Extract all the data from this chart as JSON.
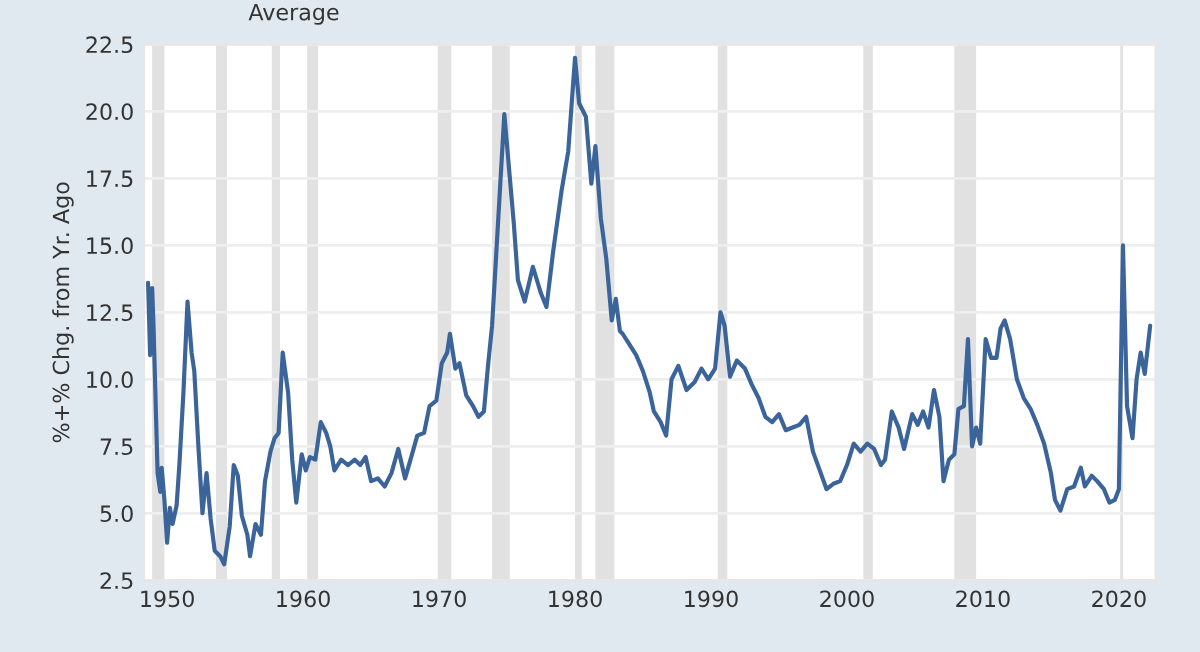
{
  "chart_data": {
    "type": "line",
    "title": "Average",
    "ylabel": "%+% Chg. from Yr. Ago",
    "x": [
      1948.6,
      1948.75,
      1948.9,
      1949.0,
      1949.3,
      1949.5,
      1949.6,
      1949.8,
      1950.0,
      1950.2,
      1950.4,
      1950.7,
      1950.9,
      1951.2,
      1951.5,
      1951.8,
      1952.0,
      1952.3,
      1952.6,
      1952.9,
      1953.2,
      1953.5,
      1953.9,
      1954.2,
      1954.6,
      1954.9,
      1955.2,
      1955.5,
      1955.9,
      1956.1,
      1956.5,
      1956.9,
      1957.2,
      1957.6,
      1957.9,
      1958.2,
      1958.5,
      1958.9,
      1959.2,
      1959.5,
      1959.9,
      1960.2,
      1960.5,
      1960.9,
      1961.3,
      1961.7,
      1962.0,
      1962.3,
      1962.8,
      1963.3,
      1963.8,
      1964.2,
      1964.6,
      1965.0,
      1965.5,
      1966.0,
      1966.5,
      1967.0,
      1967.5,
      1967.9,
      1968.4,
      1968.9,
      1969.3,
      1969.8,
      1970.2,
      1970.6,
      1970.8,
      1971.2,
      1971.5,
      1972.0,
      1972.5,
      1972.9,
      1973.3,
      1973.6,
      1973.9,
      1974.3,
      1974.8,
      1975.5,
      1975.8,
      1976.3,
      1976.9,
      1977.5,
      1977.9,
      1978.4,
      1979.0,
      1979.5,
      1980.0,
      1980.3,
      1980.8,
      1981.2,
      1981.5,
      1981.9,
      1982.3,
      1982.7,
      1983.0,
      1983.3,
      1983.5,
      1984.0,
      1984.5,
      1985.0,
      1985.5,
      1985.8,
      1986.3,
      1986.7,
      1987.1,
      1987.6,
      1988.2,
      1988.8,
      1989.3,
      1989.8,
      1990.3,
      1990.7,
      1991.0,
      1991.4,
      1991.9,
      1992.5,
      1993.0,
      1993.5,
      1994.0,
      1994.5,
      1995.0,
      1995.5,
      1996.0,
      1996.5,
      1997.0,
      1997.5,
      1998.0,
      1998.5,
      1999.0,
      1999.5,
      2000.0,
      2000.5,
      2001.0,
      2001.5,
      2002.0,
      2002.5,
      2002.8,
      2003.3,
      2003.8,
      2004.2,
      2004.8,
      2005.2,
      2005.6,
      2006.0,
      2006.4,
      2006.8,
      2007.1,
      2007.5,
      2007.9,
      2008.2,
      2008.6,
      2008.9,
      2009.2,
      2009.5,
      2009.8,
      2010.2,
      2010.6,
      2011.0,
      2011.3,
      2011.6,
      2012.0,
      2012.5,
      2013.0,
      2013.5,
      2014.0,
      2014.5,
      2015.0,
      2015.3,
      2015.7,
      2016.2,
      2016.7,
      2017.2,
      2017.5,
      2018.0,
      2018.4,
      2018.9,
      2019.3,
      2019.7,
      2020.0,
      2020.3,
      2020.6,
      2021.0,
      2021.3,
      2021.6,
      2021.9,
      2022.3
    ],
    "series": [
      {
        "color": "#3b659a",
        "values": [
          13.6,
          10.9,
          13.4,
          12.0,
          6.5,
          5.8,
          6.7,
          5.5,
          3.9,
          5.2,
          4.6,
          5.3,
          6.8,
          9.5,
          12.9,
          11.0,
          10.3,
          7.5,
          5.0,
          6.5,
          4.8,
          3.6,
          3.4,
          3.1,
          4.5,
          6.8,
          6.4,
          4.9,
          4.2,
          3.4,
          4.6,
          4.2,
          6.2,
          7.3,
          7.8,
          8.0,
          11.0,
          9.5,
          7.0,
          5.4,
          7.2,
          6.6,
          7.1,
          7.0,
          8.4,
          8.0,
          7.5,
          6.6,
          7.0,
          6.8,
          7.0,
          6.8,
          7.1,
          6.2,
          6.3,
          6.0,
          6.5,
          7.4,
          6.3,
          7.0,
          7.9,
          8.0,
          9.0,
          9.2,
          10.6,
          11.0,
          11.7,
          10.4,
          10.6,
          9.4,
          9.0,
          8.6,
          8.8,
          10.5,
          12.0,
          15.5,
          19.9,
          15.8,
          13.7,
          12.9,
          14.2,
          13.2,
          12.7,
          14.8,
          17.0,
          18.5,
          22.0,
          20.3,
          19.8,
          17.3,
          18.7,
          16.0,
          14.5,
          12.2,
          13.0,
          11.8,
          11.7,
          11.3,
          10.9,
          10.3,
          9.5,
          8.8,
          8.4,
          7.9,
          10.0,
          10.5,
          9.6,
          9.9,
          10.4,
          10.0,
          10.4,
          12.5,
          12.0,
          10.1,
          10.7,
          10.4,
          9.8,
          9.3,
          8.6,
          8.4,
          8.7,
          8.1,
          8.2,
          8.3,
          8.6,
          7.3,
          6.6,
          5.9,
          6.1,
          6.2,
          6.8,
          7.6,
          7.3,
          7.6,
          7.4,
          6.8,
          7.0,
          8.8,
          8.2,
          7.4,
          8.7,
          8.3,
          8.8,
          8.2,
          9.6,
          8.6,
          6.2,
          7.0,
          7.2,
          8.9,
          9.0,
          11.5,
          7.5,
          8.2,
          7.6,
          11.5,
          10.8,
          10.8,
          11.9,
          12.2,
          11.5,
          10.0,
          9.3,
          8.9,
          8.3,
          7.6,
          6.5,
          5.5,
          5.1,
          5.9,
          6.0,
          6.7,
          6.0,
          6.4,
          6.2,
          5.9,
          5.4,
          5.5,
          5.9,
          15.0,
          9.0,
          7.8,
          10.0,
          11.0,
          10.2,
          12.0
        ]
      }
    ],
    "xlim": [
      1948.3,
      2022.7
    ],
    "xticks": [
      1950,
      1960,
      1970,
      1980,
      1990,
      2000,
      2010,
      2020
    ],
    "ylim": [
      2.5,
      22.5
    ],
    "yticks": [
      {
        "value": 2.5,
        "label": "2.5"
      },
      {
        "value": 5,
        "label": "5.0"
      },
      {
        "value": 7.5,
        "label": "7.5"
      },
      {
        "value": 10,
        "label": "10.0"
      },
      {
        "value": 12.5,
        "label": "12.5"
      },
      {
        "value": 15,
        "label": "15.0"
      },
      {
        "value": 17.5,
        "label": "17.5"
      },
      {
        "value": 20,
        "label": "20.0"
      },
      {
        "value": 22.5,
        "label": "22.5"
      }
    ],
    "grid": "y",
    "legend": false,
    "line_style": "solid",
    "bands": [
      {
        "axis": "x",
        "from": 1948.9,
        "to": 1949.8,
        "color": "#e1e1e1"
      },
      {
        "axis": "x",
        "from": 1953.6,
        "to": 1954.4,
        "color": "#e1e1e1"
      },
      {
        "axis": "x",
        "from": 1957.7,
        "to": 1958.3,
        "color": "#e1e1e1"
      },
      {
        "axis": "x",
        "from": 1960.3,
        "to": 1961.1,
        "color": "#e1e1e1"
      },
      {
        "axis": "x",
        "from": 1969.9,
        "to": 1970.9,
        "color": "#e1e1e1"
      },
      {
        "axis": "x",
        "from": 1973.9,
        "to": 1975.2,
        "color": "#e1e1e1"
      },
      {
        "axis": "x",
        "from": 1980.0,
        "to": 1980.5,
        "color": "#e1e1e1"
      },
      {
        "axis": "x",
        "from": 1981.5,
        "to": 1982.9,
        "color": "#e1e1e1"
      },
      {
        "axis": "x",
        "from": 1990.5,
        "to": 1991.2,
        "color": "#e1e1e1"
      },
      {
        "axis": "x",
        "from": 2001.2,
        "to": 2001.9,
        "color": "#e1e1e1"
      },
      {
        "axis": "x",
        "from": 2007.9,
        "to": 2009.5,
        "color": "#e1e1e1"
      },
      {
        "axis": "x",
        "from": 2020.1,
        "to": 2020.3,
        "color": "#e1e1e1"
      }
    ]
  }
}
